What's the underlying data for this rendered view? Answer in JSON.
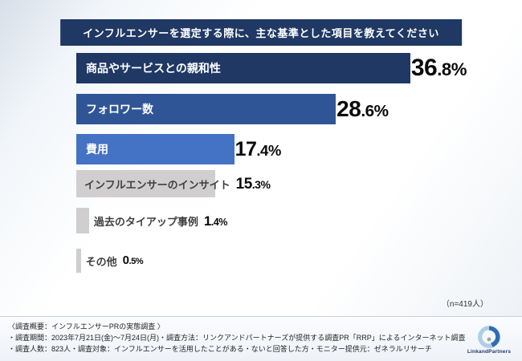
{
  "title": "インフルエンサーを選定する際に、主な基準とした項目を教えてください",
  "chart_data": {
    "type": "bar",
    "orientation": "horizontal",
    "title": "インフルエンサーを選定する際に、主な基準とした項目を教えてください",
    "categories": [
      "商品やサービスとの親和性",
      "フォロワー数",
      "費用",
      "インフルエンサーのインサイト",
      "過去のタイアップ事例",
      "その他"
    ],
    "values": [
      36.8,
      28.6,
      17.4,
      15.3,
      1.4,
      0.5
    ],
    "unit": "%",
    "xlim": [
      0,
      40
    ],
    "legend": "none",
    "grid": false,
    "bar_colors": [
      "#1f3864",
      "#2f5597",
      "#4472c4",
      "#d0cece",
      "#d0cece",
      "#d0cece"
    ],
    "n_note": "（n=419人）"
  },
  "footer": {
    "lines": [
      "〈調査概要：インフルエンサーPRの実態調査 〉",
      "・調査期間：2023年7月21日(金)〜7月24日(月)・調査方法：リンクアンドパートナーズが提供する調査PR「RRP」によるインターネット調査",
      "・調査人数：823人・調査対象：インフルエンサーを活用したことがある・ないと回答した方・モニター提供元：ゼネラルリサーチ"
    ]
  },
  "logo": {
    "text": "LinkandPartners"
  }
}
